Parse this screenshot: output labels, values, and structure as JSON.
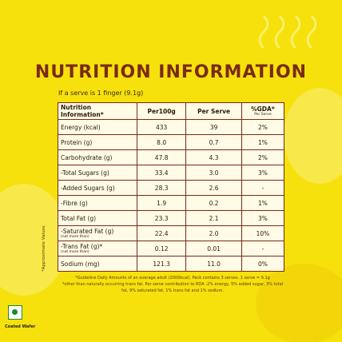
{
  "header": {
    "title": "NUTRITION INFORMATION",
    "serve_note": "If a serve is 1 finger (9.1g)"
  },
  "table": {
    "columns": [
      "Nutrition Information*",
      "Per100g",
      "Per Serve",
      "%GDA*"
    ],
    "gda_sub": "Per Serve",
    "rows": [
      {
        "label": "Energy (kcal)",
        "values": [
          "433",
          "39",
          "2%"
        ]
      },
      {
        "label": "Protein (g)",
        "values": [
          "8.0",
          "0.7",
          "1%"
        ]
      },
      {
        "label": "Carbohydrate (g)",
        "values": [
          "47.8",
          "4.3",
          "2%"
        ]
      },
      {
        "label": "-Total Sugars (g)",
        "values": [
          "33.4",
          "3.0",
          "3%"
        ]
      },
      {
        "label": "-Added Sugars (g)",
        "values": [
          "28.3",
          "2.6",
          "-"
        ]
      },
      {
        "label": "-Fibre (g)",
        "values": [
          "1.9",
          "0.2",
          "1%"
        ]
      },
      {
        "label": "Total Fat (g)",
        "values": [
          "23.3",
          "2.1",
          "3%"
        ]
      },
      {
        "label": "-Saturated Fat (g)",
        "note": "(not more than)",
        "values": [
          "22.4",
          "2.0",
          "10%"
        ]
      },
      {
        "label": "-Trans Fat (g)*",
        "note": "(not more than)",
        "values": [
          "0.12",
          "0.01",
          "-"
        ]
      },
      {
        "label": "Sodium (mg)",
        "values": [
          "121.3",
          "11.0",
          "0%"
        ]
      }
    ]
  },
  "side_note": "*Approximate Values",
  "footnotes": [
    "*Guideline Daily Amounts of an average adult (2000kcal). Pack contains 3 serves. 1 serve = 9.1g",
    "*other than naturally occurring trans fat. Per serve contribution to RDA -2% energy, 5% added sugar, 3% total fat, 9% saturated fat, 1% trans fat and 1% sodium."
  ],
  "logo_label": "Coated Wafer"
}
